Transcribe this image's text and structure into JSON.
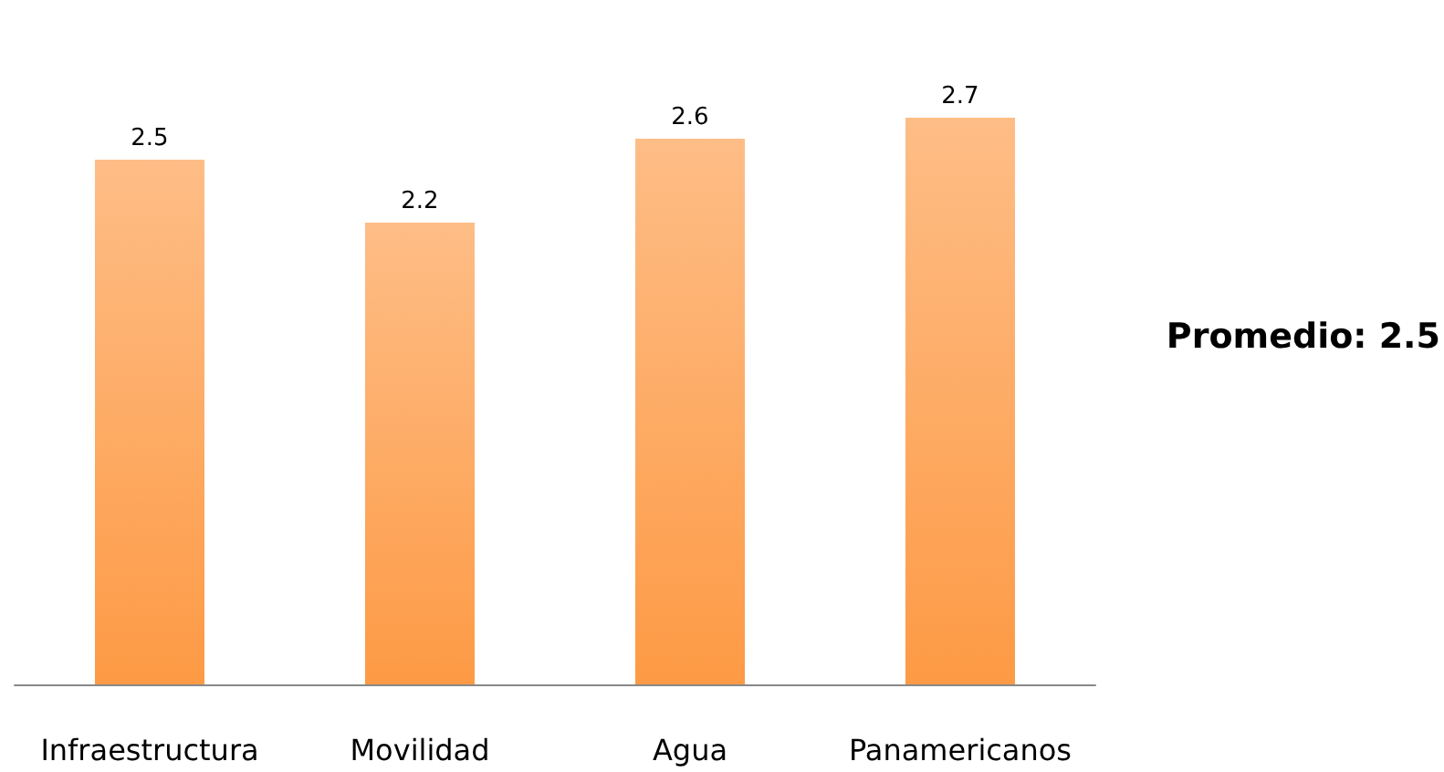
{
  "chart_data": {
    "type": "bar",
    "categories": [
      "Infraestructura",
      "Movilidad",
      "Agua",
      "Panamericanos"
    ],
    "values": [
      2.5,
      2.2,
      2.6,
      2.7
    ],
    "color": "#fd9a45",
    "tick_labels": "x",
    "data_labels": true,
    "annotations": [
      "Promedio: 2.5"
    ]
  }
}
